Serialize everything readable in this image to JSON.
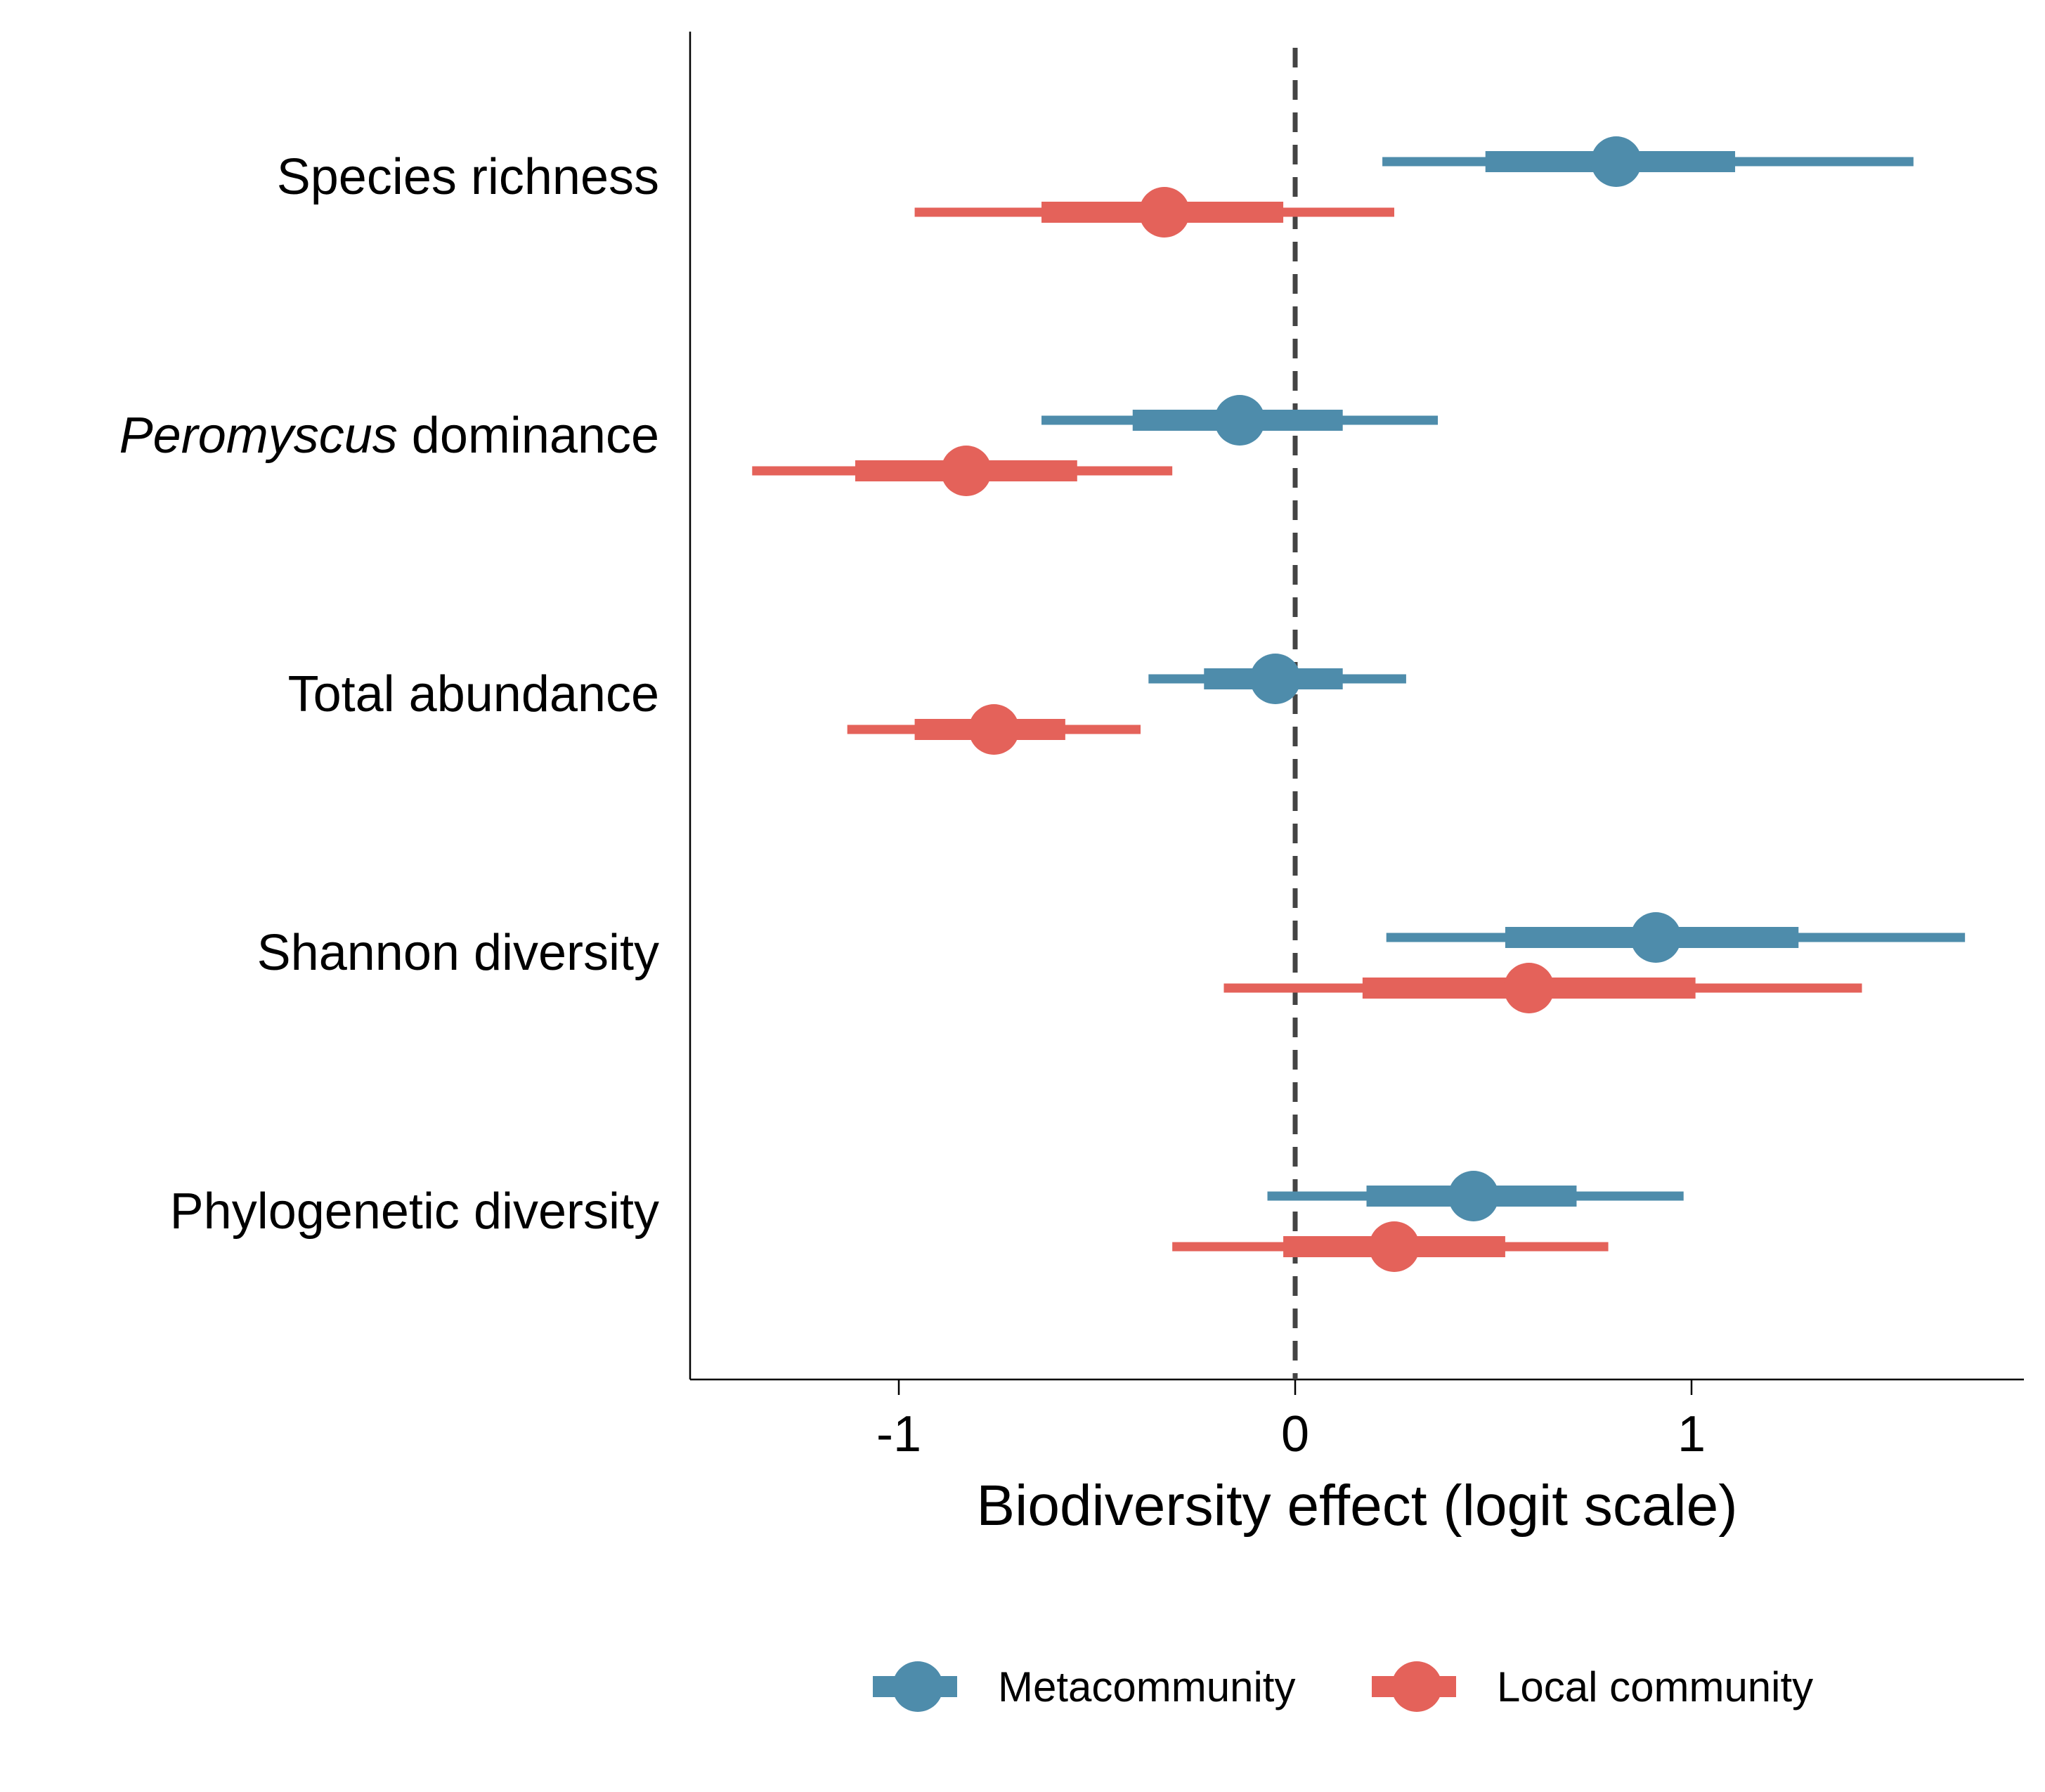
{
  "chart_data": {
    "type": "forest",
    "xlabel": "Biodiversity effect (logit scale)",
    "ylabel": "",
    "xlim": [
      -1.53,
      1.84
    ],
    "xticks": [
      -1,
      0,
      1
    ],
    "reference_line": 0,
    "grid": false,
    "legend_position": "bottom",
    "categories": [
      {
        "prefix": "",
        "emph": "",
        "rest": "Species richness"
      },
      {
        "prefix": "",
        "emph": "Peromyscus",
        "rest": " dominance"
      },
      {
        "prefix": "",
        "emph": "",
        "rest": "Total abundance"
      },
      {
        "prefix": "",
        "emph": "",
        "rest": "Shannon diversity"
      },
      {
        "prefix": "",
        "emph": "",
        "rest": "Phylogenetic diversity"
      }
    ],
    "series": [
      {
        "name": "Metacommunity",
        "color": "#4E8CAB",
        "estimates": [
          0.81,
          -0.14,
          -0.05,
          0.91,
          0.45
        ],
        "inner_low": [
          0.48,
          -0.41,
          -0.23,
          0.53,
          0.18
        ],
        "inner_high": [
          1.11,
          0.12,
          0.12,
          1.27,
          0.71
        ],
        "outer_low": [
          0.22,
          -0.64,
          -0.37,
          0.23,
          -0.07
        ],
        "outer_high": [
          1.56,
          0.36,
          0.28,
          1.69,
          0.98
        ]
      },
      {
        "name": "Local community",
        "color": "#E4625A",
        "estimates": [
          -0.33,
          -0.83,
          -0.76,
          0.59,
          0.25
        ],
        "inner_low": [
          -0.64,
          -1.11,
          -0.96,
          0.17,
          -0.03
        ],
        "inner_high": [
          -0.03,
          -0.55,
          -0.58,
          1.01,
          0.53
        ],
        "outer_low": [
          -0.96,
          -1.37,
          -1.13,
          -0.18,
          -0.31
        ],
        "outer_high": [
          0.25,
          -0.31,
          -0.39,
          1.43,
          0.79
        ]
      }
    ]
  }
}
